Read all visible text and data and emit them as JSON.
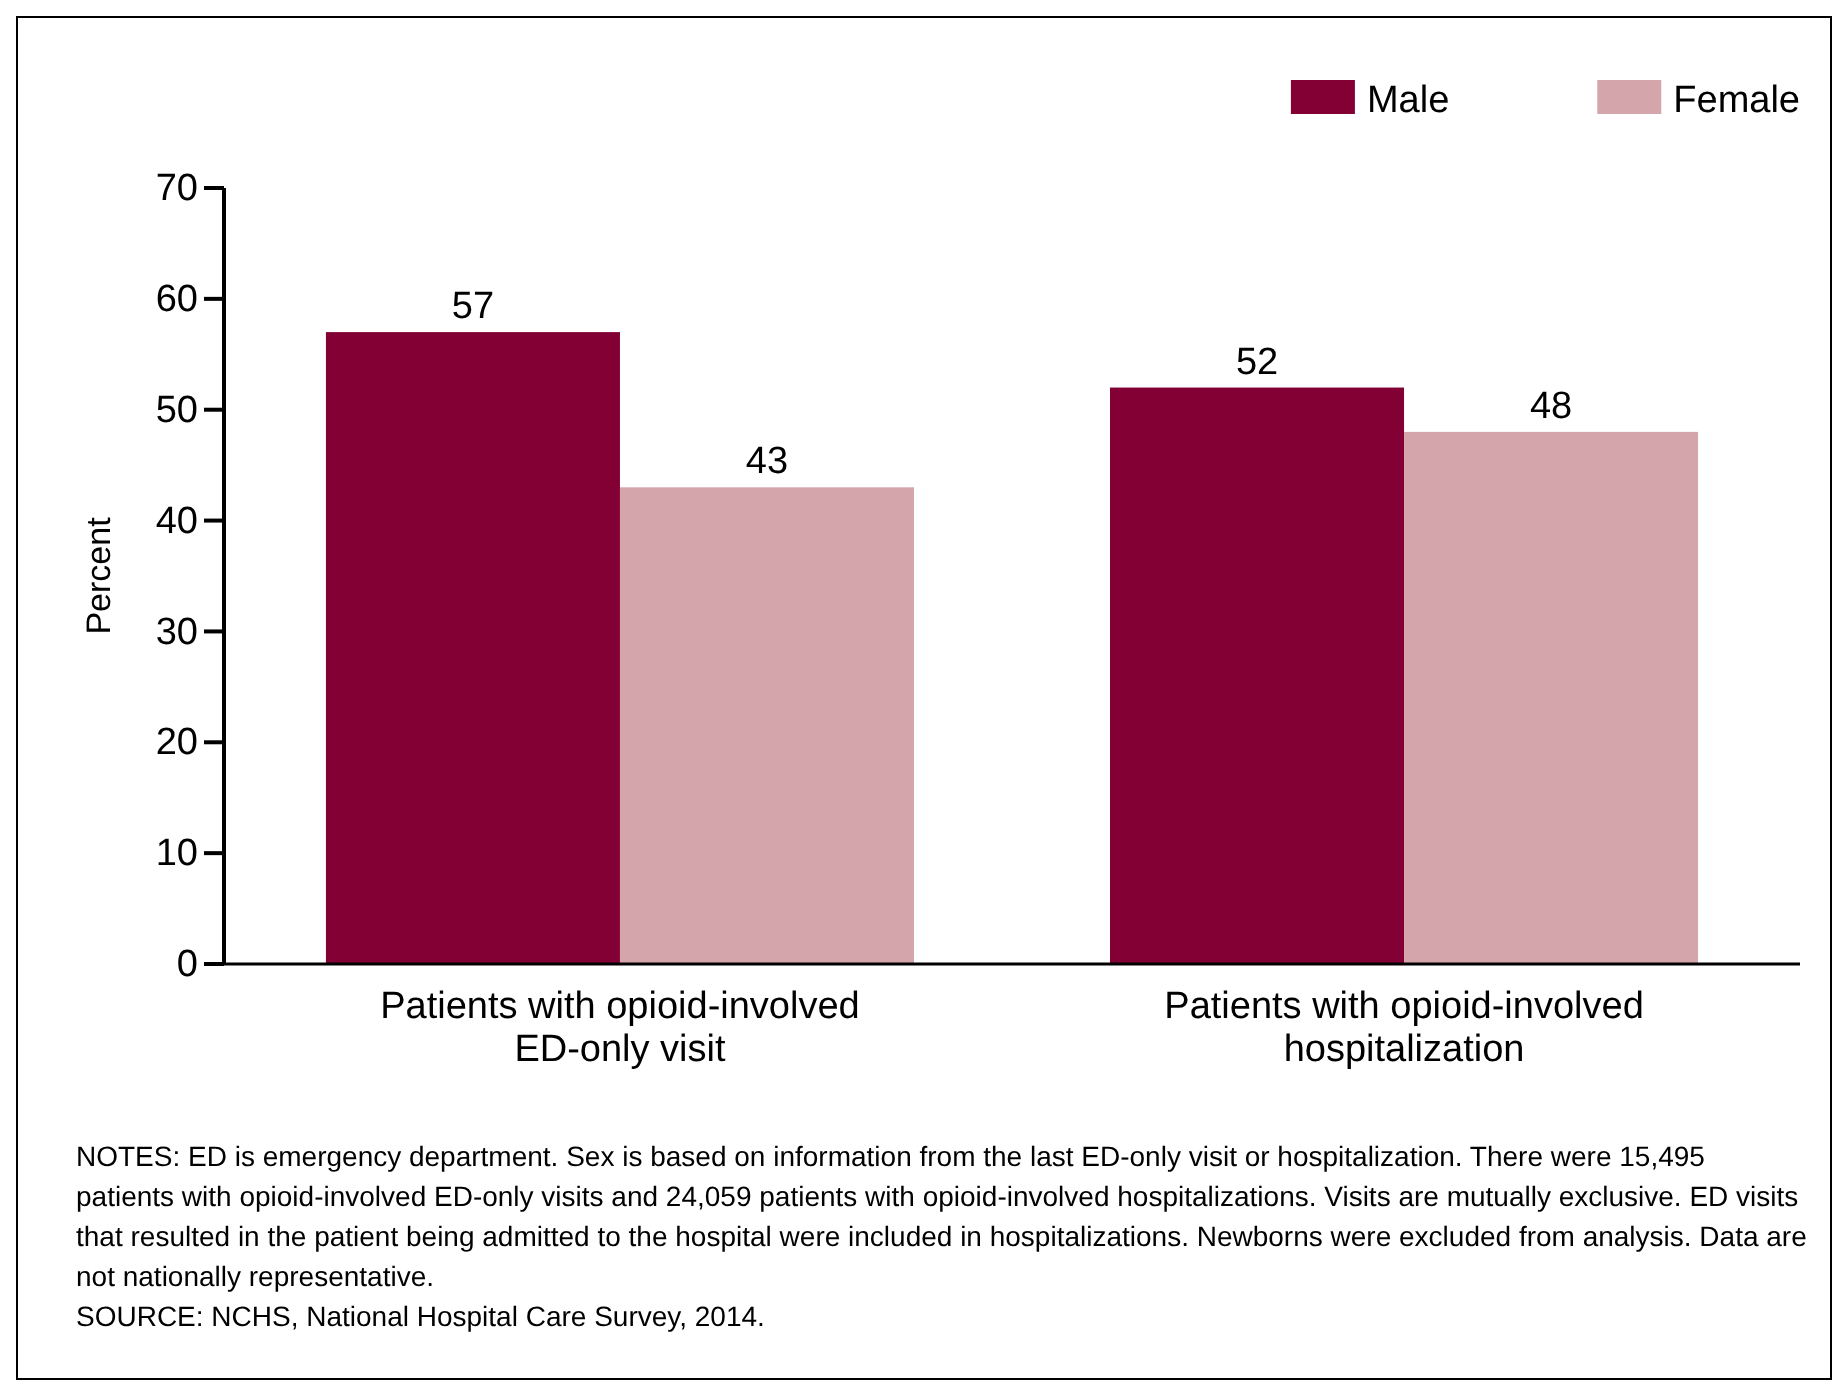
{
  "chart_data": {
    "type": "bar",
    "ylabel": "Percent",
    "categories": [
      "Patients with opioid-involved ED-only visit",
      "Patients with opioid-involved hospitalization"
    ],
    "series": [
      {
        "name": "Male",
        "color": "#820034",
        "values": [
          57,
          52
        ]
      },
      {
        "name": "Female",
        "color": "#d4a5ab",
        "values": [
          43,
          48
        ]
      }
    ],
    "ylim": [
      0,
      70
    ],
    "yticks": [
      0,
      10,
      20,
      30,
      40,
      50,
      60,
      70
    ],
    "grid": false,
    "legend": "top right",
    "data_labels": true,
    "annotations": [
      "NOTES: ED is emergency department. Sex is based on information from the last ED-only visit or hospitalization. There were 15,495 patients with opioid-involved ED-only visits and 24,059 patients with opioid-involved hospitalizations. Visits are mutually exclusive. ED visits that resulted in the patient being admitted to the hospital were included in hospitalizations. Newborns were excluded from analysis. Data are not nationally representative.",
      "SOURCE: NCHS, National Hospital Care Survey, 2014."
    ]
  }
}
